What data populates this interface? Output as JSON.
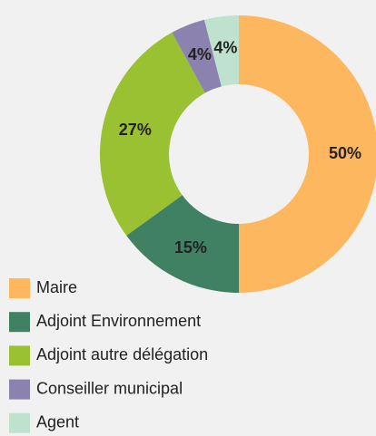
{
  "chart_data": {
    "type": "pie",
    "donut": true,
    "categories": [
      "Maire",
      "Adjoint Environnement",
      "Adjoint autre délégation",
      "Conseiller municipal",
      "Agent"
    ],
    "values": [
      50,
      15,
      27,
      4,
      4
    ],
    "value_labels": [
      "50%",
      "15%",
      "27%",
      "4%",
      "4%"
    ],
    "colors": [
      "#fdb75e",
      "#3f8162",
      "#99c132",
      "#8b82b0",
      "#bfe2cf"
    ]
  }
}
